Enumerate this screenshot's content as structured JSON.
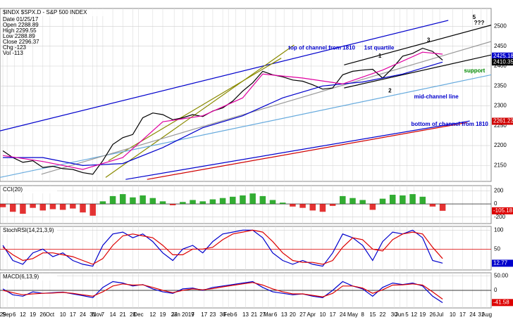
{
  "chart_data": [
    {
      "type": "line",
      "title": "$INDX $SPX.D - S&P 500 INDEX",
      "info": [
        "Date 01/25/17",
        "Open 2288.89",
        "High 2299.55",
        "Low 2288.89",
        "Close 2296.37",
        "Chg -123",
        "Vol -113"
      ],
      "xlim": [
        -2,
        342
      ],
      "ylim": [
        2110,
        2545
      ],
      "yticks": [
        2500,
        2450,
        2400,
        2350,
        2300,
        2250,
        2200,
        2150
      ],
      "grid": true,
      "x": [
        0,
        7,
        14,
        21,
        28,
        35,
        42,
        49,
        56,
        63,
        70,
        77,
        84,
        91,
        98,
        105,
        112,
        119,
        126,
        133,
        140,
        147,
        154,
        161,
        168,
        175,
        182,
        189,
        196,
        203,
        210,
        217,
        224,
        231,
        238,
        245,
        252,
        259,
        266,
        273,
        280,
        287,
        294,
        301,
        308
      ],
      "series": [
        {
          "color": "#000000",
          "values": [
            2187,
            2170,
            2158,
            2162,
            2145,
            2148,
            2142,
            2140,
            2132,
            2128,
            2162,
            2203,
            2220,
            2228,
            2270,
            2282,
            2278,
            2265,
            2270,
            2278,
            2273,
            2287,
            2295,
            2312,
            2337,
            2358,
            2387,
            2378,
            2373,
            2365,
            2362,
            2353,
            2342,
            2345,
            2378,
            2387,
            2390,
            2392,
            2370,
            2395,
            2425,
            2432,
            2445,
            2437,
            2415
          ]
        },
        {
          "color": "#0000cc",
          "x": [
            0,
            28,
            56,
            84,
            112,
            140,
            168,
            196,
            224,
            252,
            280,
            308
          ],
          "values": [
            2170,
            2170,
            2150,
            2155,
            2195,
            2245,
            2275,
            2320,
            2350,
            2360,
            2380,
            2410
          ]
        },
        {
          "color": "#e000a0",
          "x": [
            0,
            28,
            56,
            84,
            112,
            140,
            168,
            182,
            210,
            238,
            266,
            294,
            308
          ],
          "values": [
            2175,
            2160,
            2140,
            2170,
            2260,
            2275,
            2320,
            2380,
            2370,
            2355,
            2390,
            2435,
            2430
          ]
        }
      ],
      "trendlines": [
        {
          "color": "#0000cc",
          "x": [
            -2,
            312
          ],
          "y": [
            2237,
            2515
          ]
        },
        {
          "color": "#0000cc",
          "x": [
            86,
            327
          ],
          "y": [
            2115,
            2262
          ]
        },
        {
          "color": "#d00000",
          "x": [
            101,
            325
          ],
          "y": [
            2115,
            2258
          ]
        },
        {
          "color": "#8a8a00",
          "x": [
            72,
            204
          ],
          "y": [
            2120,
            2453
          ]
        },
        {
          "color": "#8a8a00",
          "x": [
            74,
            195
          ],
          "y": [
            2162,
            2420
          ]
        },
        {
          "color": "#000000",
          "x": [
            239,
            342
          ],
          "y": [
            2403,
            2503
          ]
        },
        {
          "color": "#000000",
          "x": [
            239,
            342
          ],
          "y": [
            2345,
            2428
          ]
        },
        {
          "color": "#66aadd",
          "x": [
            -2,
            342
          ],
          "y": [
            2120,
            2378
          ]
        },
        {
          "color": "#999999",
          "x": [
            27,
            342
          ],
          "y": [
            2128,
            2462
          ]
        }
      ],
      "annotations": [
        {
          "text": "top of channel from 1810",
          "x": 200,
          "y": 2445,
          "color": "#0000cc"
        },
        {
          "text": "1st quartile",
          "x": 253,
          "y": 2445,
          "color": "#0000cc"
        },
        {
          "text": "1",
          "x": 263,
          "y": 2425,
          "color": "#000000"
        },
        {
          "text": "2",
          "x": 270,
          "y": 2337,
          "color": "#000000"
        },
        {
          "text": "3",
          "x": 297,
          "y": 2465,
          "color": "#000000"
        },
        {
          "text": "mid-channel line",
          "x": 288,
          "y": 2322,
          "color": "#0000cc"
        },
        {
          "text": "bottom of channel from 1810",
          "x": 286,
          "y": 2253,
          "color": "#0000cc"
        },
        {
          "text": "support",
          "x": 323,
          "y": 2388,
          "color": "#008800"
        },
        {
          "text": "5",
          "x": 329,
          "y": 2522,
          "color": "#000000"
        },
        {
          "text": "???",
          "x": 330,
          "y": 2508,
          "color": "#000000"
        }
      ],
      "value_boxes": [
        {
          "value": 2425.18,
          "label": "2425.18",
          "color": "#0000cc"
        },
        {
          "value": 2410.35,
          "label": "2410.35",
          "color": "#000000"
        },
        {
          "value": 2261.23,
          "label": "2261.23",
          "color": "#d00000"
        }
      ]
    },
    {
      "type": "bar",
      "title": "CCI(20)",
      "xlim": [
        -2,
        342
      ],
      "ylim": [
        -300,
        280
      ],
      "yticks": [
        200,
        0,
        -200
      ],
      "grid": true,
      "x": [
        0,
        7,
        14,
        21,
        28,
        35,
        42,
        49,
        56,
        63,
        70,
        77,
        84,
        91,
        98,
        105,
        112,
        119,
        126,
        133,
        140,
        147,
        154,
        161,
        168,
        175,
        182,
        189,
        196,
        203,
        210,
        217,
        224,
        231,
        238,
        245,
        252,
        259,
        266,
        273,
        280,
        287,
        294,
        301,
        308
      ],
      "colors": {
        "positive": "#009900",
        "negative": "#dd0000"
      },
      "values": [
        -50,
        -120,
        -150,
        -60,
        -100,
        -80,
        -90,
        -70,
        -130,
        -180,
        40,
        120,
        150,
        100,
        130,
        90,
        40,
        -20,
        30,
        60,
        40,
        70,
        90,
        110,
        130,
        160,
        120,
        60,
        20,
        -40,
        -60,
        -100,
        -120,
        -30,
        120,
        90,
        60,
        -90,
        80,
        140,
        130,
        150,
        110,
        -40,
        -105
      ],
      "value_boxes": [
        {
          "value": -105.18,
          "label": "-105.18",
          "color": "#dd0000"
        }
      ]
    },
    {
      "type": "line",
      "title": "StochRSI(14,21,3,9)",
      "xlim": [
        -2,
        342
      ],
      "ylim": [
        -5,
        110
      ],
      "yticks": [
        100,
        50
      ],
      "grid": true,
      "x": [
        0,
        7,
        14,
        21,
        28,
        35,
        42,
        49,
        56,
        63,
        70,
        77,
        84,
        91,
        98,
        105,
        112,
        119,
        126,
        133,
        140,
        147,
        154,
        161,
        168,
        175,
        182,
        189,
        196,
        203,
        210,
        217,
        224,
        231,
        238,
        245,
        252,
        259,
        266,
        273,
        280,
        287,
        294,
        301,
        308
      ],
      "reference_lines": [
        {
          "value": 50,
          "color": "#dd0000"
        }
      ],
      "series": [
        {
          "color": "#0000cc",
          "values": [
            60,
            20,
            10,
            40,
            50,
            30,
            40,
            20,
            10,
            5,
            60,
            90,
            95,
            80,
            90,
            70,
            40,
            20,
            50,
            60,
            40,
            70,
            90,
            95,
            100,
            100,
            80,
            40,
            20,
            10,
            20,
            10,
            5,
            40,
            90,
            80,
            60,
            20,
            70,
            95,
            90,
            100,
            80,
            20,
            13
          ]
        },
        {
          "color": "#dd0000",
          "values": [
            55,
            35,
            20,
            25,
            40,
            40,
            35,
            30,
            20,
            10,
            25,
            60,
            85,
            90,
            85,
            80,
            60,
            35,
            35,
            50,
            50,
            55,
            75,
            90,
            95,
            100,
            95,
            70,
            40,
            20,
            15,
            15,
            10,
            20,
            55,
            80,
            75,
            50,
            45,
            75,
            90,
            95,
            90,
            55,
            25
          ]
        }
      ],
      "value_boxes": [
        {
          "value": 12.77,
          "label": "12.77",
          "color": "#0000cc"
        }
      ]
    },
    {
      "type": "line",
      "title": "MACD(6,13,9)",
      "xlim": [
        -2,
        342
      ],
      "ylim": [
        -60,
        60
      ],
      "yticks": [
        {
          "value": 50,
          "label": "50.00"
        },
        0
      ],
      "grid": true,
      "x": [
        0,
        7,
        14,
        21,
        28,
        35,
        42,
        49,
        56,
        63,
        70,
        77,
        84,
        91,
        98,
        105,
        112,
        119,
        126,
        133,
        140,
        147,
        154,
        161,
        168,
        175,
        182,
        189,
        196,
        203,
        210,
        217,
        224,
        231,
        238,
        245,
        252,
        259,
        266,
        273,
        280,
        287,
        294,
        301,
        308
      ],
      "reference_lines": [
        {
          "value": 0,
          "color": "#000000"
        }
      ],
      "series": [
        {
          "color": "#0000cc",
          "values": [
            5,
            -15,
            -20,
            -5,
            -10,
            -8,
            -6,
            -12,
            -18,
            -25,
            10,
            30,
            25,
            15,
            20,
            5,
            -5,
            -10,
            5,
            8,
            0,
            10,
            15,
            20,
            25,
            30,
            10,
            -5,
            -10,
            -15,
            -12,
            -20,
            -25,
            0,
            30,
            15,
            5,
            -20,
            10,
            25,
            20,
            25,
            15,
            -20,
            -42
          ]
        },
        {
          "color": "#dd0000",
          "values": [
            0,
            -8,
            -15,
            -12,
            -10,
            -9,
            -7,
            -10,
            -15,
            -20,
            -5,
            15,
            22,
            18,
            19,
            10,
            0,
            -8,
            0,
            5,
            2,
            6,
            12,
            17,
            22,
            27,
            18,
            5,
            -5,
            -12,
            -12,
            -17,
            -22,
            -10,
            15,
            15,
            8,
            -10,
            2,
            18,
            19,
            22,
            18,
            -5,
            -30
          ]
        }
      ],
      "value_boxes": [
        {
          "value": -41.58,
          "label": "-41.58",
          "color": "#dd0000"
        }
      ],
      "xticks": [
        {
          "value": 0,
          "label": "29"
        },
        {
          "value": 3,
          "label": "Sep"
        },
        {
          "value": 8,
          "label": "6"
        },
        {
          "value": 14,
          "label": "12"
        },
        {
          "value": 21,
          "label": "19"
        },
        {
          "value": 28,
          "label": "26"
        },
        {
          "value": 33,
          "label": "Oct"
        },
        {
          "value": 42,
          "label": "10"
        },
        {
          "value": 49,
          "label": "17"
        },
        {
          "value": 56,
          "label": "24"
        },
        {
          "value": 63,
          "label": "31"
        },
        {
          "value": 66,
          "label": "Nov"
        },
        {
          "value": 70,
          "label": "7"
        },
        {
          "value": 77,
          "label": "14"
        },
        {
          "value": 84,
          "label": "21"
        },
        {
          "value": 91,
          "label": "28"
        },
        {
          "value": 95,
          "label": "Dec"
        },
        {
          "value": 105,
          "label": "12"
        },
        {
          "value": 112,
          "label": "19"
        },
        {
          "value": 120,
          "label": "27"
        },
        {
          "value": 126,
          "label": "Jan 2017"
        },
        {
          "value": 133,
          "label": "9"
        },
        {
          "value": 141,
          "label": "17"
        },
        {
          "value": 147,
          "label": "23"
        },
        {
          "value": 154,
          "label": "30"
        },
        {
          "value": 158,
          "label": "Feb"
        },
        {
          "value": 163,
          "label": "6"
        },
        {
          "value": 170,
          "label": "13"
        },
        {
          "value": 176,
          "label": "21"
        },
        {
          "value": 182,
          "label": "27"
        },
        {
          "value": 186,
          "label": "Mar"
        },
        {
          "value": 191,
          "label": "6"
        },
        {
          "value": 197,
          "label": "13"
        },
        {
          "value": 203,
          "label": "20"
        },
        {
          "value": 210,
          "label": "27"
        },
        {
          "value": 216,
          "label": "Apr"
        },
        {
          "value": 224,
          "label": "10"
        },
        {
          "value": 231,
          "label": "17"
        },
        {
          "value": 238,
          "label": "24"
        },
        {
          "value": 245,
          "label": "May"
        },
        {
          "value": 252,
          "label": "8"
        },
        {
          "value": 259,
          "label": "15"
        },
        {
          "value": 266,
          "label": "22"
        },
        {
          "value": 274,
          "label": "30"
        },
        {
          "value": 278,
          "label": "Jun"
        },
        {
          "value": 283,
          "label": "5"
        },
        {
          "value": 288,
          "label": "12"
        },
        {
          "value": 294,
          "label": "19"
        },
        {
          "value": 301,
          "label": "26"
        },
        {
          "value": 306,
          "label": "Jul"
        },
        {
          "value": 315,
          "label": "10"
        },
        {
          "value": 322,
          "label": "17"
        },
        {
          "value": 329,
          "label": "24"
        },
        {
          "value": 335,
          "label": "31"
        },
        {
          "value": 339,
          "label": "Aug"
        }
      ]
    }
  ]
}
